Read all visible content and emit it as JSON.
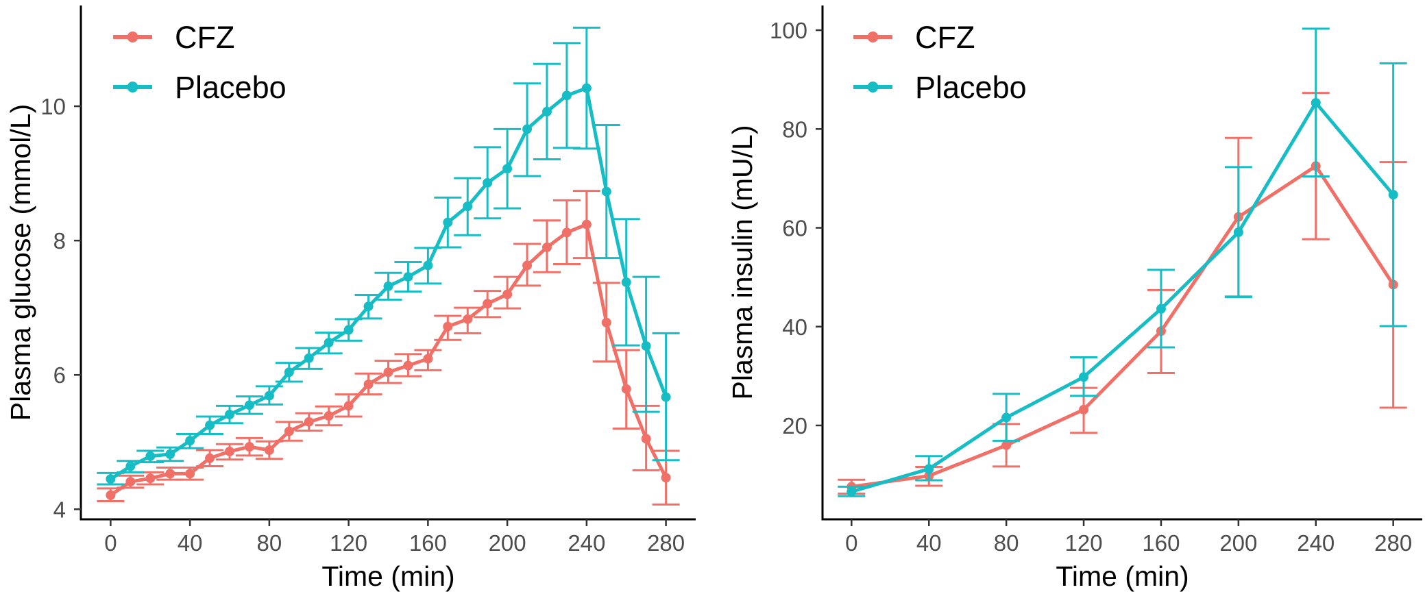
{
  "chart_data": [
    {
      "type": "line",
      "xlabel": "Time (min)",
      "ylabel": "Plasma glucose (mmol/L)",
      "xlim": [
        -15,
        295
      ],
      "ylim": [
        3.85,
        11.5
      ],
      "xticks": [
        0,
        40,
        80,
        120,
        160,
        200,
        240,
        280
      ],
      "yticks": [
        4,
        6,
        8,
        10
      ],
      "grid": false,
      "legend_position": "top-left",
      "series": [
        {
          "name": "CFZ",
          "color": "#F07067",
          "x": [
            0,
            10,
            20,
            30,
            40,
            50,
            60,
            70,
            80,
            90,
            100,
            110,
            120,
            130,
            140,
            150,
            160,
            170,
            180,
            190,
            200,
            210,
            220,
            230,
            240,
            250,
            260,
            270,
            280
          ],
          "y": [
            4.21,
            4.41,
            4.46,
            4.53,
            4.53,
            4.76,
            4.86,
            4.93,
            4.88,
            5.16,
            5.3,
            5.39,
            5.54,
            5.86,
            6.04,
            6.14,
            6.24,
            6.72,
            6.83,
            7.06,
            7.2,
            7.63,
            7.9,
            8.12,
            8.24,
            6.78,
            5.79,
            5.05,
            4.47
          ],
          "err_low": [
            4.12,
            4.32,
            4.37,
            4.44,
            4.44,
            4.64,
            4.74,
            4.8,
            4.75,
            5.02,
            5.17,
            5.25,
            5.38,
            5.71,
            5.88,
            5.98,
            6.07,
            6.52,
            6.62,
            6.86,
            6.99,
            7.33,
            7.53,
            7.65,
            7.74,
            6.2,
            5.2,
            4.58,
            4.07
          ],
          "err_high": [
            4.31,
            4.5,
            4.55,
            4.62,
            4.62,
            4.88,
            4.97,
            5.06,
            5.01,
            5.3,
            5.43,
            5.53,
            5.71,
            6.02,
            6.21,
            6.31,
            6.37,
            6.88,
            7.0,
            7.25,
            7.46,
            7.95,
            8.3,
            8.6,
            8.74,
            7.37,
            6.37,
            5.54,
            4.87
          ]
        },
        {
          "name": "Placebo",
          "color": "#16BDC4",
          "x": [
            0,
            10,
            20,
            30,
            40,
            50,
            60,
            70,
            80,
            90,
            100,
            110,
            120,
            130,
            140,
            150,
            160,
            170,
            180,
            190,
            200,
            210,
            220,
            230,
            240,
            250,
            260,
            270,
            280
          ],
          "y": [
            4.45,
            4.64,
            4.79,
            4.82,
            5.02,
            5.25,
            5.41,
            5.55,
            5.69,
            6.04,
            6.25,
            6.48,
            6.67,
            7.02,
            7.32,
            7.46,
            7.63,
            8.27,
            8.51,
            8.86,
            9.07,
            9.66,
            9.92,
            10.16,
            10.27,
            8.73,
            7.38,
            6.43,
            5.67
          ],
          "err_low": [
            4.37,
            4.55,
            4.7,
            4.72,
            4.91,
            5.12,
            5.28,
            5.42,
            5.56,
            5.9,
            6.09,
            6.32,
            6.51,
            6.84,
            7.12,
            7.24,
            7.36,
            7.9,
            8.08,
            8.33,
            8.48,
            8.96,
            9.21,
            9.38,
            9.37,
            7.74,
            6.44,
            5.45,
            4.73
          ],
          "err_high": [
            4.54,
            4.72,
            4.87,
            4.92,
            5.12,
            5.38,
            5.54,
            5.68,
            5.83,
            6.18,
            6.4,
            6.63,
            6.83,
            7.19,
            7.52,
            7.68,
            7.89,
            8.64,
            8.93,
            9.39,
            9.66,
            10.34,
            10.63,
            10.94,
            11.17,
            9.72,
            8.32,
            7.46,
            6.62
          ]
        }
      ]
    },
    {
      "type": "line",
      "xlabel": "Time (min)",
      "ylabel": "Plasma insulin (mU/L)",
      "xlim": [
        -15,
        295
      ],
      "ylim": [
        1,
        105
      ],
      "xticks": [
        0,
        40,
        80,
        120,
        160,
        200,
        240,
        280
      ],
      "yticks": [
        20,
        40,
        60,
        80,
        100
      ],
      "grid": false,
      "legend_position": "top-left",
      "series": [
        {
          "name": "CFZ",
          "color": "#F07067",
          "x": [
            0,
            40,
            80,
            120,
            160,
            200,
            240,
            280
          ],
          "y": [
            7.6,
            9.8,
            16.0,
            23.2,
            39.1,
            62.2,
            72.5,
            48.5
          ],
          "err_low": [
            6.2,
            7.8,
            11.7,
            18.5,
            30.6,
            46.1,
            57.7,
            23.6
          ],
          "err_high": [
            9.0,
            11.6,
            20.3,
            27.6,
            47.4,
            78.2,
            87.3,
            73.3
          ]
        },
        {
          "name": "Placebo",
          "color": "#16BDC4",
          "x": [
            0,
            40,
            80,
            120,
            160,
            200,
            240,
            280
          ],
          "y": [
            6.6,
            11.2,
            21.6,
            29.8,
            43.6,
            59.1,
            85.3,
            66.7
          ],
          "err_low": [
            5.7,
            8.9,
            16.9,
            26.0,
            35.8,
            46.0,
            70.4,
            40.1
          ],
          "err_high": [
            7.6,
            13.8,
            26.4,
            33.8,
            51.5,
            72.3,
            100.3,
            93.3
          ]
        }
      ]
    }
  ]
}
